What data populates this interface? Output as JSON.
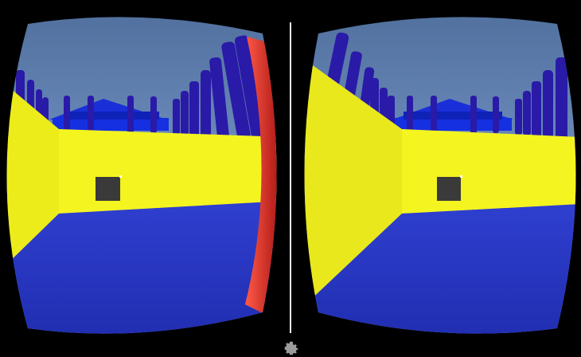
{
  "app": {
    "view_mode": "stereo-vr",
    "settings_icon": "gear-icon"
  },
  "scene": {
    "sky_top_color": "#4f6e9c",
    "sky_bottom_color": "#87a8dc",
    "wall_color": "#f0f01e",
    "floor_color": "#2737c4",
    "pillar_color": "#2a1aa8",
    "building_color": "#1230d8",
    "reticle_color": "#3a3a3a",
    "bezel_color": "#000000",
    "focus_indicator_color": "#e03a2c"
  }
}
